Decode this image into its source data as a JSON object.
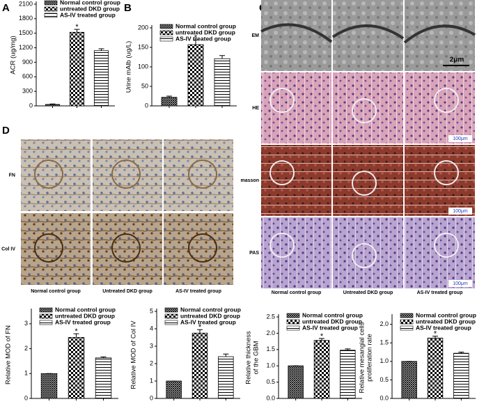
{
  "panel_labels": [
    "A",
    "B",
    "C",
    "D"
  ],
  "micrographs_c": {
    "rows": [
      "EM",
      "HE",
      "masson",
      "PAS"
    ],
    "columns": [
      "Normal control group",
      "Untreated DKD group",
      "AS-IV treated group"
    ],
    "scale_bars": [
      "2μm",
      "100μm",
      "100μm",
      "100μm"
    ]
  },
  "micrographs_d": {
    "rows": [
      "FN",
      "Col IV"
    ],
    "columns": [
      "Normal control group",
      "Untreated DKD group",
      "AS-IV treated group"
    ]
  },
  "chart_data": [
    {
      "type": "bar",
      "ylabel": [
        "ACR (ug/mg)"
      ],
      "categories": [
        "Normal control group",
        "untreated DKD group",
        "AS-IV treated group"
      ],
      "values": [
        30,
        1520,
        1140
      ],
      "errors": [
        10,
        60,
        40
      ],
      "annotation": "*",
      "patterns": [
        "crosshatch",
        "checker",
        "stripes"
      ],
      "color": "#000000",
      "ylim": [
        0,
        2100
      ],
      "yticks": [
        0,
        300,
        600,
        900,
        1200,
        1500,
        1800,
        2100
      ]
    },
    {
      "type": "bar",
      "ylabel": [
        "Urine mAlb (ug/L)"
      ],
      "categories": [
        "Normal control group",
        "untreated DKD group",
        "AS-IV treated group"
      ],
      "values": [
        22,
        157,
        121
      ],
      "errors": [
        3,
        12,
        8
      ],
      "annotation": "*",
      "patterns": [
        "crosshatch",
        "checker",
        "stripes"
      ],
      "color": "#000000",
      "ylim": [
        0,
        200
      ],
      "yticks": [
        0,
        50,
        100,
        150,
        200
      ]
    },
    {
      "type": "bar",
      "ylabel": [
        "Relative MOD of FN"
      ],
      "categories": [
        "Normal control group",
        "untreated DKD group",
        "AS-IV treated group"
      ],
      "values": [
        1.0,
        2.45,
        1.63
      ],
      "errors": [
        0,
        0.15,
        0.04
      ],
      "annotation": "*",
      "patterns": [
        "crosshatch",
        "checker",
        "stripes"
      ],
      "color": "#000000",
      "ylim": [
        0,
        3.5
      ],
      "yticks": [
        0,
        1,
        2,
        3
      ]
    },
    {
      "type": "bar",
      "ylabel": [
        "Relative MOD of Col IV"
      ],
      "categories": [
        "Normal control group",
        "untreated DKD group",
        "AS-IV treated group"
      ],
      "values": [
        1.0,
        3.75,
        2.4
      ],
      "errors": [
        0,
        0.2,
        0.15
      ],
      "annotation": "*",
      "patterns": [
        "crosshatch",
        "checker",
        "stripes"
      ],
      "color": "#000000",
      "ylim": [
        0,
        5
      ],
      "yticks": [
        0,
        1,
        2,
        3,
        4,
        5
      ]
    },
    {
      "type": "bar",
      "ylabel": [
        "Relative thickness",
        "of the GBM"
      ],
      "categories": [
        "Normal control group",
        "untreated DKD group",
        "AS-IV treated group"
      ],
      "values": [
        1.0,
        1.78,
        1.48
      ],
      "errors": [
        0,
        0.06,
        0.04
      ],
      "annotation": "*",
      "patterns": [
        "crosshatch",
        "checker",
        "stripes"
      ],
      "color": "#000000",
      "ylim": [
        0,
        2.5
      ],
      "yticks": [
        {
          "value": 0,
          "label": "0.0"
        },
        0.5,
        {
          "value": 1,
          "label": "1.0"
        },
        1.5,
        {
          "value": 2,
          "label": "2.0"
        },
        2.5
      ]
    },
    {
      "type": "bar",
      "ylabel": [
        "Relative mesangial cells",
        "proliferation rate"
      ],
      "categories": [
        "Normal control group",
        "untreated DKD group",
        "AS-IV treated group"
      ],
      "values": [
        1.0,
        1.63,
        1.22
      ],
      "errors": [
        0,
        0.05,
        0.03
      ],
      "annotation": "*",
      "patterns": [
        "crosshatch",
        "checker",
        "stripes"
      ],
      "color": "#000000",
      "ylim": [
        0,
        2.2
      ],
      "yticks": [
        {
          "value": 0,
          "label": "0.0"
        },
        0.5,
        {
          "value": 1,
          "label": "1.0"
        },
        1.5,
        {
          "value": 2,
          "label": "2.0"
        }
      ]
    }
  ]
}
